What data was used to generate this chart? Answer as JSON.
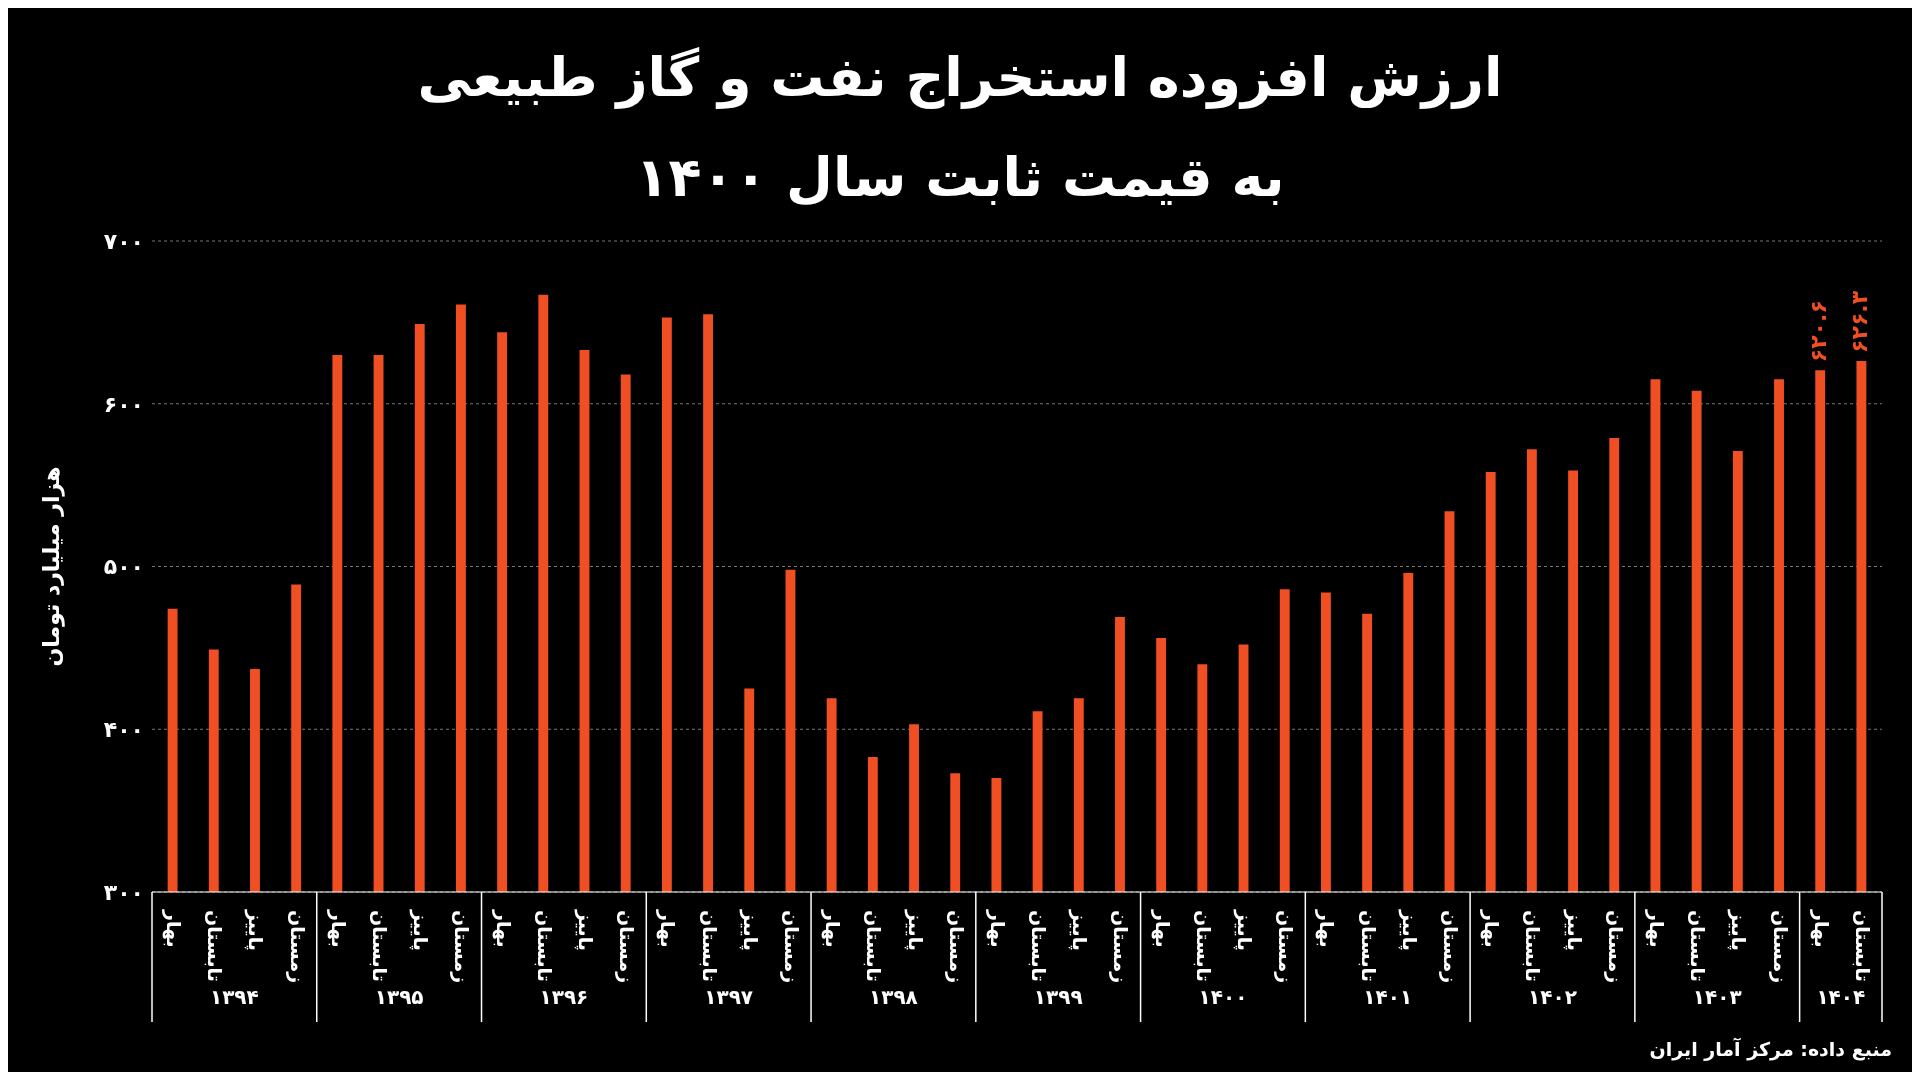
{
  "chart_data": {
    "type": "bar",
    "title": "ارزش افزوده استخراج نفت و گاز طبیعی\nبه قیمت ثابت سال ۱۴۰۰",
    "ylabel": "هزار میلیارد تومان",
    "categories": [
      "بهار",
      "تابستان",
      "پاییز",
      "زمستان",
      "بهار",
      "تابستان",
      "پاییز",
      "زمستان",
      "بهار",
      "تابستان",
      "پاییز",
      "زمستان",
      "بهار",
      "تابستان",
      "پاییز",
      "زمستان",
      "بهار",
      "تابستان",
      "پاییز",
      "زمستان",
      "بهار",
      "تابستان",
      "پاییز",
      "زمستان",
      "بهار",
      "تابستان",
      "پاییز",
      "زمستان",
      "بهار",
      "تابستان",
      "پاییز",
      "زمستان",
      "بهار",
      "تابستان",
      "پاییز",
      "زمستان",
      "بهار",
      "تابستان",
      "پاییز",
      "زمستان",
      "بهار",
      "تابستان"
    ],
    "values": [
      474,
      449,
      437,
      489,
      630,
      630,
      649,
      661,
      644,
      667,
      633,
      618,
      653,
      655,
      425,
      498,
      419,
      383,
      403,
      373,
      370,
      411,
      419,
      469,
      456,
      440,
      452,
      486,
      484,
      471,
      496,
      534,
      558,
      572,
      559,
      579,
      615,
      608,
      571,
      615,
      620.6,
      626.3
    ],
    "value_labels": [
      null,
      null,
      null,
      null,
      null,
      null,
      null,
      null,
      null,
      null,
      null,
      null,
      null,
      null,
      null,
      null,
      null,
      null,
      null,
      null,
      null,
      null,
      null,
      null,
      null,
      null,
      null,
      null,
      null,
      null,
      null,
      null,
      null,
      null,
      null,
      null,
      null,
      null,
      null,
      null,
      "۶۲۰.۶",
      "۶۲۶.۳"
    ],
    "color": "#f04e23",
    "ylim": [
      300,
      700
    ],
    "yticks": [
      {
        "value": 300,
        "label": "۳۰۰"
      },
      {
        "value": 400,
        "label": "۴۰۰"
      },
      {
        "value": 500,
        "label": "۵۰۰"
      },
      {
        "value": 600,
        "label": "۶۰۰"
      },
      {
        "value": 700,
        "label": "۷۰۰"
      }
    ],
    "grid": "y",
    "annotations": [
      "۱۳۹۴",
      "۱۳۹۵",
      "۱۳۹۶",
      "۱۳۹۷",
      "۱۳۹۸",
      "۱۳۹۹",
      "۱۴۰۰",
      "۱۴۰۱",
      "۱۴۰۲",
      "۱۴۰۳",
      "۱۴۰۴",
      "منبع داده: مرکز آمار ایران"
    ]
  }
}
